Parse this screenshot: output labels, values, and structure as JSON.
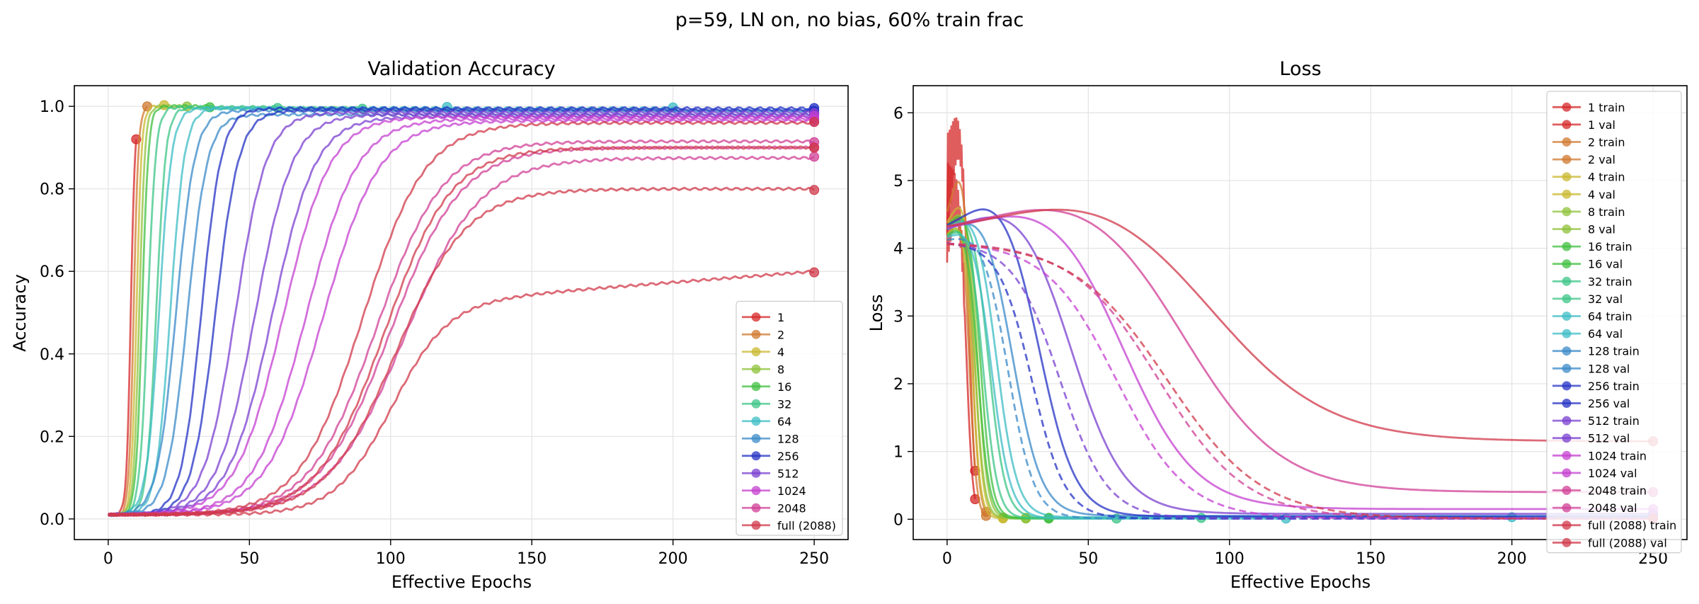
{
  "figure": {
    "suptitle": "p=59, LN on, no bias, 60% train frac"
  },
  "chart_data": [
    {
      "type": "line",
      "title": "Validation Accuracy",
      "xlabel": "Effective Epochs",
      "ylabel": "Accuracy",
      "xlim": [
        -12,
        262
      ],
      "ylim": [
        -0.05,
        1.05
      ],
      "xticks": [
        0,
        50,
        100,
        150,
        200,
        250
      ],
      "yticks": [
        0.0,
        0.2,
        0.4,
        0.6,
        0.8,
        1.0
      ],
      "xtick_labels": [
        "0",
        "50",
        "100",
        "150",
        "200",
        "250"
      ],
      "ytick_labels": [
        "0.0",
        "0.2",
        "0.4",
        "0.6",
        "0.8",
        "1.0"
      ],
      "grid": true,
      "legend_position": "lower-right",
      "series": [
        {
          "name": "1",
          "color": "#d62728",
          "curves": [
            {
              "mid": 8,
              "k": 1.3,
              "final": 1.0,
              "end": 10
            }
          ]
        },
        {
          "name": "2",
          "color": "#d0782f",
          "curves": [
            {
              "mid": 9,
              "k": 1.2,
              "final": 1.0,
              "end": 14
            }
          ]
        },
        {
          "name": "4",
          "color": "#c9b830",
          "curves": [
            {
              "mid": 10,
              "k": 1.1,
              "final": 1.0,
              "end": 20
            }
          ]
        },
        {
          "name": "8",
          "color": "#8fc23a",
          "curves": [
            {
              "mid": 11,
              "k": 1.0,
              "final": 1.0,
              "end": 28
            }
          ]
        },
        {
          "name": "16",
          "color": "#3fbf3f",
          "curves": [
            {
              "mid": 12,
              "k": 0.9,
              "final": 1.0,
              "end": 36
            }
          ]
        },
        {
          "name": "32",
          "color": "#3cc487",
          "curves": [
            {
              "mid": 14,
              "k": 0.7,
              "final": 0.998,
              "end": 60
            },
            {
              "mid": 17,
              "k": 0.6,
              "final": 0.996,
              "end": 90
            }
          ]
        },
        {
          "name": "64",
          "color": "#3cbcc4",
          "curves": [
            {
              "mid": 18,
              "k": 0.45,
              "final": 0.996,
              "end": 120
            },
            {
              "mid": 22,
              "k": 0.4,
              "final": 0.995,
              "end": 200
            }
          ]
        },
        {
          "name": "128",
          "color": "#3a8ac8",
          "curves": [
            {
              "mid": 24,
              "k": 0.3,
              "final": 0.99,
              "end": 250
            },
            {
              "mid": 28,
              "k": 0.28,
              "final": 0.98,
              "end": 250
            }
          ]
        },
        {
          "name": "256",
          "color": "#2431c4",
          "curves": [
            {
              "mid": 33,
              "k": 0.28,
              "final": 0.995,
              "end": 250
            },
            {
              "mid": 38,
              "k": 0.24,
              "final": 0.99,
              "end": 250
            }
          ]
        },
        {
          "name": "512",
          "color": "#7a3fd0",
          "curves": [
            {
              "mid": 45,
              "k": 0.18,
              "final": 0.985,
              "end": 250
            },
            {
              "mid": 52,
              "k": 0.15,
              "final": 0.98,
              "end": 250
            },
            {
              "mid": 58,
              "k": 0.13,
              "final": 0.975,
              "end": 250
            }
          ]
        },
        {
          "name": "1024",
          "color": "#c43fd0",
          "curves": [
            {
              "mid": 62,
              "k": 0.12,
              "final": 0.975,
              "end": 250
            },
            {
              "mid": 70,
              "k": 0.11,
              "final": 0.97,
              "end": 250
            },
            {
              "mid": 76,
              "k": 0.1,
              "final": 0.965,
              "end": 250
            }
          ]
        },
        {
          "name": "2048",
          "color": "#d03f96",
          "curves": [
            {
              "mid": 95,
              "k": 0.085,
              "final": 0.915,
              "end": 250
            },
            {
              "mid": 100,
              "k": 0.08,
              "final": 0.9,
              "end": 250
            },
            {
              "mid": 105,
              "k": 0.075,
              "final": 0.875,
              "end": 250
            }
          ]
        },
        {
          "name": "full (2088)",
          "color": "#d0384a",
          "curves": [
            {
              "mid": 90,
              "k": 0.09,
              "final": 0.96,
              "end": 250
            },
            {
              "mid": 98,
              "k": 0.085,
              "final": 0.9,
              "end": 250
            },
            {
              "mid": 102,
              "k": 0.08,
              "final": 0.8,
              "end": 250
            },
            {
              "mid": 100,
              "k": 0.1,
              "final": 0.6,
              "end": 250,
              "drift": 0.08
            }
          ]
        }
      ]
    },
    {
      "type": "line",
      "title": "Loss",
      "xlabel": "Effective Epochs",
      "ylabel": "Loss",
      "xlim": [
        -12,
        262
      ],
      "ylim": [
        -0.3,
        6.4
      ],
      "xticks": [
        0,
        50,
        100,
        150,
        200,
        250
      ],
      "yticks": [
        0,
        1,
        2,
        3,
        4,
        5,
        6
      ],
      "xtick_labels": [
        "0",
        "50",
        "100",
        "150",
        "200",
        "250"
      ],
      "ytick_labels": [
        "0",
        "1",
        "2",
        "3",
        "4",
        "5",
        "6"
      ],
      "grid": true,
      "legend_position": "upper-right",
      "series": [
        {
          "name": "1 train",
          "color": "#d62728",
          "style": "solid",
          "curves": [
            {
              "mid": 7,
              "k": 0.9,
              "start": 4.1,
              "final": 0.01,
              "bump": 0.7,
              "end": 10
            }
          ]
        },
        {
          "name": "1 val",
          "color": "#d62728",
          "style": "solid",
          "curves": [
            {
              "mid": 8,
              "k": 0.9,
              "start": 4.2,
              "final": 0.02,
              "bump": 1.5,
              "end": 10
            }
          ]
        },
        {
          "name": "2 train",
          "color": "#d0782f",
          "style": "solid",
          "curves": [
            {
              "mid": 8,
              "k": 0.8,
              "start": 4.1,
              "final": 0.01,
              "bump": 0.5,
              "end": 14
            }
          ]
        },
        {
          "name": "2 val",
          "color": "#d0782f",
          "style": "solid",
          "curves": [
            {
              "mid": 9,
              "k": 0.8,
              "start": 4.2,
              "final": 0.02,
              "bump": 0.9,
              "end": 14
            }
          ]
        },
        {
          "name": "4 train",
          "color": "#c9b830",
          "style": "solid",
          "curves": [
            {
              "mid": 9,
              "k": 0.7,
              "start": 4.1,
              "final": 0.01,
              "bump": 0.3,
              "end": 20
            }
          ]
        },
        {
          "name": "4 val",
          "color": "#c9b830",
          "style": "solid",
          "curves": [
            {
              "mid": 10,
              "k": 0.7,
              "start": 4.2,
              "final": 0.02,
              "bump": 0.5,
              "end": 20
            }
          ]
        },
        {
          "name": "8 train",
          "color": "#8fc23a",
          "style": "solid",
          "curves": [
            {
              "mid": 10,
              "k": 0.6,
              "start": 4.1,
              "final": 0.01,
              "bump": 0.3,
              "end": 28
            }
          ]
        },
        {
          "name": "8 val",
          "color": "#8fc23a",
          "style": "solid",
          "curves": [
            {
              "mid": 11,
              "k": 0.6,
              "start": 4.2,
              "final": 0.02,
              "bump": 0.4,
              "end": 28
            }
          ]
        },
        {
          "name": "16 train",
          "color": "#3fbf3f",
          "style": "solid",
          "curves": [
            {
              "mid": 11,
              "k": 0.5,
              "start": 4.1,
              "final": 0.01,
              "bump": 0.3,
              "end": 36
            }
          ]
        },
        {
          "name": "16 val",
          "color": "#3fbf3f",
          "style": "solid",
          "curves": [
            {
              "mid": 12,
              "k": 0.5,
              "start": 4.2,
              "final": 0.02,
              "bump": 0.4,
              "end": 36
            }
          ]
        },
        {
          "name": "32 train",
          "color": "#3cc487",
          "style": "solid",
          "curves": [
            {
              "mid": 13,
              "k": 0.4,
              "start": 4.1,
              "final": 0.01,
              "bump": 0.3,
              "end": 60
            }
          ]
        },
        {
          "name": "32 val",
          "color": "#3cc487",
          "style": "solid",
          "curves": [
            {
              "mid": 15,
              "k": 0.35,
              "start": 4.2,
              "final": 0.02,
              "bump": 0.4,
              "end": 90
            }
          ]
        },
        {
          "name": "64 train",
          "color": "#3cbcc4",
          "style": "solid",
          "curves": [
            {
              "mid": 16,
              "k": 0.3,
              "start": 4.1,
              "final": 0.01,
              "bump": 0.3,
              "end": 120
            }
          ]
        },
        {
          "name": "64 val",
          "color": "#3cbcc4",
          "style": "solid",
          "curves": [
            {
              "mid": 18,
              "k": 0.28,
              "start": 4.2,
              "final": 0.03,
              "bump": 0.4,
              "end": 200
            }
          ]
        },
        {
          "name": "128 train",
          "color": "#3a8ac8",
          "style": "dashed",
          "curves": [
            {
              "mid": 22,
              "k": 0.22,
              "start": 4.1,
              "final": 0.01,
              "bump": 0.2,
              "end": 250
            }
          ]
        },
        {
          "name": "128 val",
          "color": "#3a8ac8",
          "style": "solid",
          "curves": [
            {
              "mid": 24,
              "k": 0.2,
              "start": 4.2,
              "final": 0.05,
              "bump": 0.4,
              "end": 250
            }
          ]
        },
        {
          "name": "256 train",
          "color": "#2431c4",
          "style": "dashed",
          "curves": [
            {
              "mid": 30,
              "k": 0.17,
              "start": 4.1,
              "final": 0.01,
              "bump": 0.0,
              "end": 250
            }
          ]
        },
        {
          "name": "256 val",
          "color": "#2431c4",
          "style": "solid",
          "curves": [
            {
              "mid": 34,
              "k": 0.16,
              "start": 4.2,
              "final": 0.04,
              "bump": 0.6,
              "end": 250
            }
          ]
        },
        {
          "name": "512 train",
          "color": "#7a3fd0",
          "style": "dashed",
          "curves": [
            {
              "mid": 40,
              "k": 0.12,
              "start": 4.1,
              "final": 0.01,
              "bump": 0.0,
              "end": 250
            }
          ]
        },
        {
          "name": "512 val",
          "color": "#7a3fd0",
          "style": "solid",
          "curves": [
            {
              "mid": 46,
              "k": 0.11,
              "start": 4.2,
              "final": 0.08,
              "bump": 0.5,
              "end": 250
            }
          ]
        },
        {
          "name": "1024 train",
          "color": "#c43fd0",
          "style": "dashed",
          "curves": [
            {
              "mid": 60,
              "k": 0.08,
              "start": 4.1,
              "final": 0.01,
              "bump": 0.0,
              "end": 250
            }
          ]
        },
        {
          "name": "1024 val",
          "color": "#c43fd0",
          "style": "solid",
          "curves": [
            {
              "mid": 65,
              "k": 0.08,
              "start": 4.2,
              "final": 0.15,
              "bump": 0.5,
              "end": 250
            }
          ]
        },
        {
          "name": "2048 train",
          "color": "#d03f96",
          "style": "dashed",
          "curves": [
            {
              "mid": 75,
              "k": 0.065,
              "start": 4.1,
              "final": 0.01,
              "bump": 0.0,
              "end": 250
            }
          ]
        },
        {
          "name": "2048 val",
          "color": "#d03f96",
          "style": "solid",
          "curves": [
            {
              "mid": 88,
              "k": 0.06,
              "start": 4.2,
              "final": 0.4,
              "bump": 0.6,
              "end": 250
            }
          ]
        },
        {
          "name": "full (2088) train",
          "color": "#d0384a",
          "style": "dashed",
          "curves": [
            {
              "mid": 78,
              "k": 0.06,
              "start": 4.1,
              "final": 0.01,
              "bump": 0.0,
              "end": 250
            }
          ]
        },
        {
          "name": "full (2088) val",
          "color": "#d0384a",
          "style": "solid",
          "curves": [
            {
              "mid": 100,
              "k": 0.05,
              "start": 4.2,
              "final": 1.15,
              "bump": 0.6,
              "end": 250
            }
          ]
        }
      ]
    }
  ]
}
